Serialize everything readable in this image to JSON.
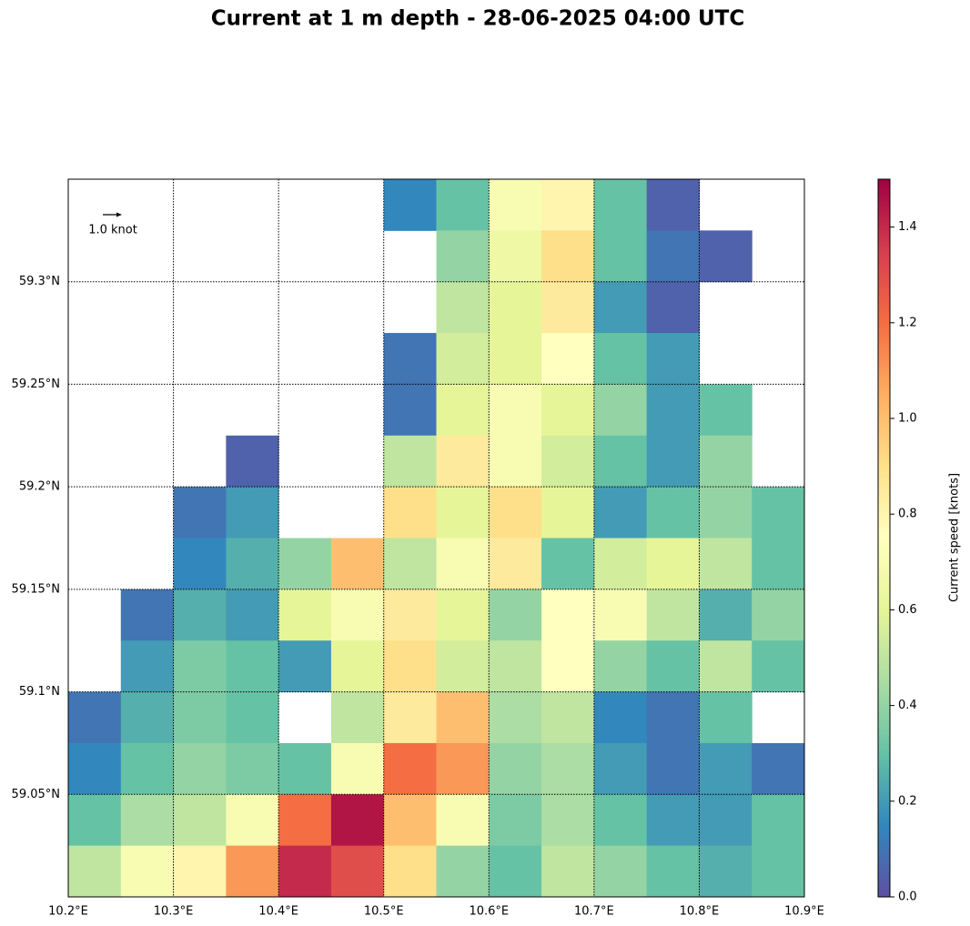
{
  "chart_data": {
    "type": "heatmap",
    "title": "Current at 1 m depth - 28-06-2025 04:00 UTC",
    "colorbar_label": "Current speed [knots]",
    "quiver_key": "1.0 knot",
    "xlim": [
      10.2,
      10.9
    ],
    "ylim": [
      59.0,
      59.35
    ],
    "grid": true,
    "xticks": [
      {
        "value": 10.2,
        "label": "10.2°E"
      },
      {
        "value": 10.3,
        "label": "10.3°E"
      },
      {
        "value": 10.4,
        "label": "10.4°E"
      },
      {
        "value": 10.5,
        "label": "10.5°E"
      },
      {
        "value": 10.6,
        "label": "10.6°E"
      },
      {
        "value": 10.7,
        "label": "10.7°E"
      },
      {
        "value": 10.8,
        "label": "10.8°E"
      },
      {
        "value": 10.9,
        "label": "10.9°E"
      }
    ],
    "yticks": [
      {
        "value": 59.05,
        "label": "59.05°N"
      },
      {
        "value": 59.1,
        "label": "59.1°N"
      },
      {
        "value": 59.15,
        "label": "59.15°N"
      },
      {
        "value": 59.2,
        "label": "59.2°N"
      },
      {
        "value": 59.25,
        "label": "59.25°N"
      },
      {
        "value": 59.3,
        "label": "59.3°N"
      }
    ],
    "clim": [
      0,
      1.5
    ],
    "cticks": [
      {
        "value": 0,
        "label": "0.0"
      },
      0.2,
      0.4,
      0.6,
      0.8,
      {
        "value": 1,
        "label": "1.0"
      },
      1.2,
      1.4
    ],
    "colormap": [
      "#5e4fa2",
      "#3288bd",
      "#66c2a5",
      "#abdda4",
      "#e6f598",
      "#ffffbf",
      "#fee08b",
      "#fdae61",
      "#f46d43",
      "#d53e4f",
      "#9e0142"
    ],
    "lon": [
      10.225,
      10.275,
      10.325,
      10.375,
      10.425,
      10.475,
      10.525,
      10.575,
      10.625,
      10.675,
      10.725,
      10.775,
      10.825,
      10.875
    ],
    "lat": [
      59.3375,
      59.3125,
      59.2875,
      59.2625,
      59.2375,
      59.2125,
      59.1875,
      59.1625,
      59.1375,
      59.1125,
      59.0875,
      59.0625,
      59.0375,
      59.0125
    ],
    "values": [
      [
        null,
        null,
        null,
        null,
        null,
        null,
        0.15,
        0.3,
        0.7,
        0.8,
        0.3,
        0.05,
        null,
        null
      ],
      [
        null,
        null,
        null,
        null,
        null,
        null,
        null,
        0.4,
        0.65,
        0.9,
        0.3,
        0.1,
        0.05,
        null
      ],
      [
        null,
        null,
        null,
        null,
        null,
        null,
        null,
        0.5,
        0.6,
        0.85,
        0.2,
        0.05,
        null,
        null
      ],
      [
        null,
        null,
        null,
        null,
        null,
        null,
        0.1,
        0.55,
        0.6,
        0.75,
        0.3,
        0.2,
        null,
        null
      ],
      [
        null,
        null,
        null,
        null,
        null,
        null,
        0.1,
        0.6,
        0.7,
        0.6,
        0.4,
        0.2,
        0.3,
        null
      ],
      [
        null,
        null,
        null,
        0.05,
        null,
        null,
        0.5,
        0.85,
        0.7,
        0.55,
        0.3,
        0.2,
        0.4,
        null
      ],
      [
        null,
        null,
        0.1,
        0.2,
        null,
        null,
        0.9,
        0.6,
        0.9,
        0.6,
        0.2,
        0.3,
        0.4,
        0.3
      ],
      [
        null,
        null,
        0.15,
        0.25,
        0.4,
        1.0,
        0.5,
        0.7,
        0.85,
        0.3,
        0.55,
        0.6,
        0.5,
        0.3
      ],
      [
        null,
        0.1,
        0.25,
        0.2,
        0.6,
        0.7,
        0.85,
        0.6,
        0.4,
        0.75,
        0.7,
        0.5,
        0.25,
        0.4
      ],
      [
        null,
        0.2,
        0.35,
        0.3,
        0.2,
        0.6,
        0.9,
        0.55,
        0.5,
        0.75,
        0.4,
        0.3,
        0.5,
        0.3
      ],
      [
        0.1,
        0.25,
        0.35,
        0.3,
        null,
        0.5,
        0.85,
        1.0,
        0.45,
        0.5,
        0.15,
        0.1,
        0.3,
        null
      ],
      [
        0.15,
        0.3,
        0.4,
        0.35,
        0.3,
        0.7,
        1.2,
        1.1,
        0.4,
        0.45,
        0.2,
        0.1,
        0.2,
        0.1
      ],
      [
        0.3,
        0.45,
        0.5,
        0.7,
        1.2,
        1.45,
        1.0,
        0.7,
        0.35,
        0.45,
        0.3,
        0.2,
        0.2,
        0.3
      ],
      [
        0.5,
        0.7,
        0.8,
        1.1,
        1.4,
        1.3,
        0.9,
        0.4,
        0.3,
        0.5,
        0.4,
        0.3,
        0.25,
        0.3
      ]
    ]
  }
}
